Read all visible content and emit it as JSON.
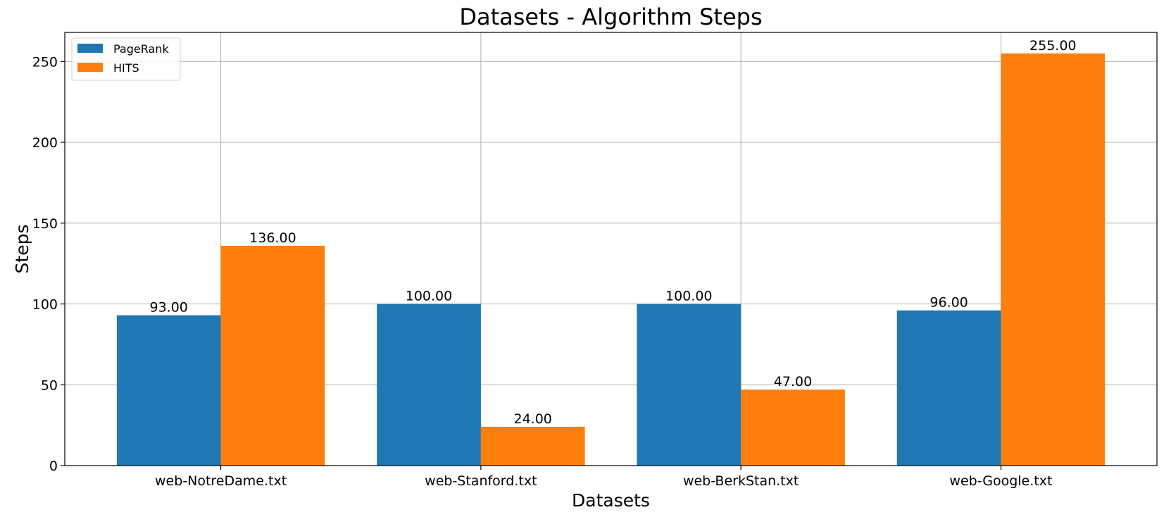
{
  "chart_data": {
    "type": "bar",
    "title": "Datasets - Algorithm Steps",
    "xlabel": "Datasets",
    "ylabel": "Steps",
    "categories": [
      "web-NotreDame.txt",
      "web-Stanford.txt",
      "web-BerkStan.txt",
      "web-Google.txt"
    ],
    "series": [
      {
        "name": "PageRank",
        "color": "#1f77b4",
        "values": [
          93,
          100,
          100,
          96
        ],
        "labels": [
          "93.00",
          "100.00",
          "100.00",
          "96.00"
        ]
      },
      {
        "name": "HITS",
        "color": "#ff7f0e",
        "values": [
          136,
          24,
          47,
          255
        ],
        "labels": [
          "136.00",
          "24.00",
          "47.00",
          "255.00"
        ]
      }
    ],
    "ylim": [
      0,
      268
    ],
    "yticks": [
      0,
      50,
      100,
      150,
      200,
      250
    ],
    "ytick_labels": [
      "0",
      "50",
      "100",
      "150",
      "200",
      "250"
    ],
    "grid": true,
    "legend_position": "top-left"
  }
}
